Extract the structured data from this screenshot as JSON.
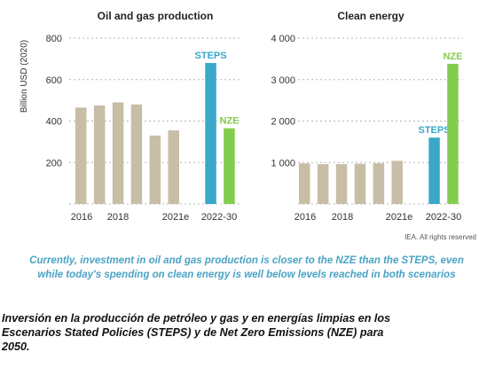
{
  "colors": {
    "historical": "#c8bda6",
    "steps": "#3aa7c9",
    "nze": "#83cd4e",
    "note": "#4aa3c4"
  },
  "chart_data": [
    {
      "type": "bar",
      "title": "Oil and gas production",
      "ylabel": "Billion USD (2020)",
      "ylim": [
        0,
        800
      ],
      "yticks": [
        "800",
        "600",
        "400",
        "200"
      ],
      "categories": [
        "2016",
        "2017",
        "2018",
        "2019",
        "2020",
        "2021e",
        "STEPS",
        "NZE"
      ],
      "xtick_labels": [
        "2016",
        "2018",
        "2021e",
        "2022-30"
      ],
      "values": [
        465,
        475,
        490,
        480,
        330,
        355,
        680,
        365
      ],
      "bar_labels": {
        "STEPS": "STEPS",
        "NZE": "NZE"
      }
    },
    {
      "type": "bar",
      "title": "Clean energy",
      "ylabel": "",
      "ylim": [
        0,
        4000
      ],
      "yticks": [
        "4 000",
        "3 000",
        "2 000",
        "1 000"
      ],
      "categories": [
        "2016",
        "2017",
        "2018",
        "2019",
        "2020",
        "2021e",
        "STEPS",
        "NZE"
      ],
      "xtick_labels": [
        "2016",
        "2018",
        "2021e",
        "2022-30"
      ],
      "values": [
        980,
        960,
        960,
        970,
        980,
        1040,
        1600,
        3380
      ],
      "bar_labels": {
        "STEPS": "STEPS",
        "NZE": "NZE"
      }
    }
  ],
  "source": "IEA. All rights reserved",
  "note": {
    "line1": "Currently, investment in oil and gas production is closer to the NZE than the STEPS, even",
    "line2": "while today's spending on clean energy is well below levels reached in both scenarios"
  },
  "caption": {
    "line1": "Inversión en la producción de petróleo y gas y en energías limpias en los",
    "line2": "Escenarios Stated Policies (STEPS) y de Net Zero Emissions (NZE) para",
    "line3": "2050."
  }
}
